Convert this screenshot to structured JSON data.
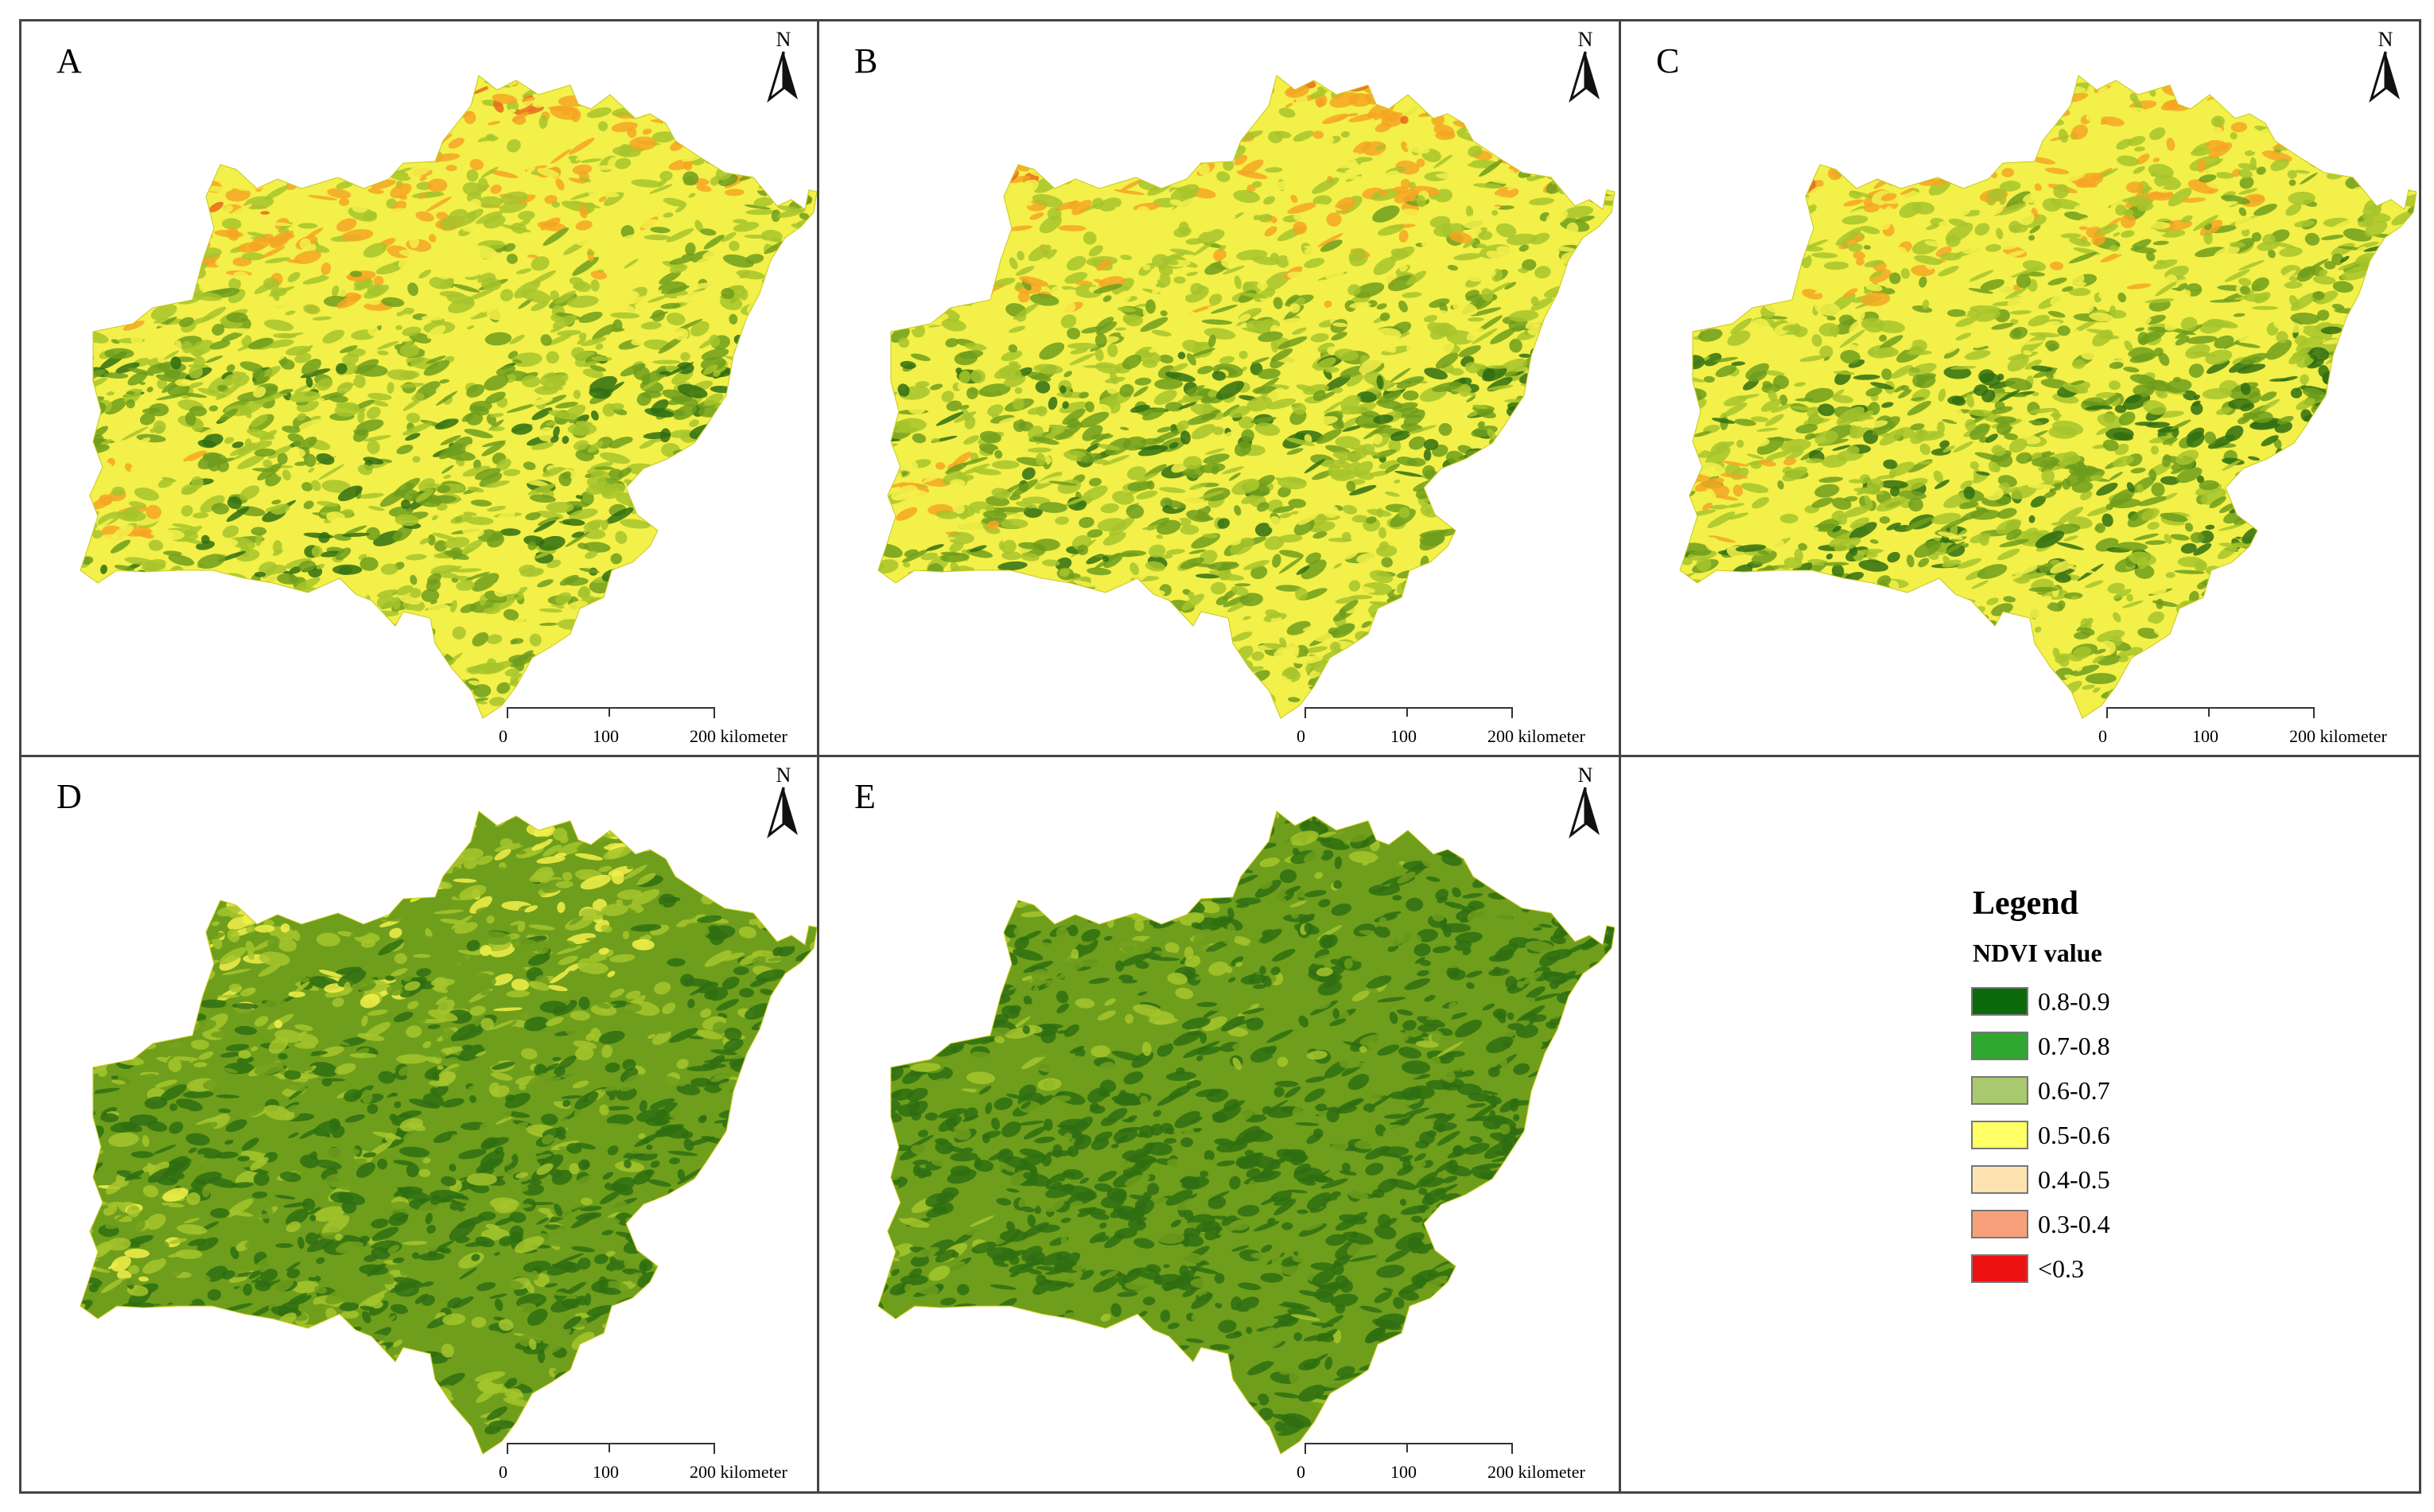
{
  "panels": [
    {
      "id": "A",
      "label": "A",
      "north": "N",
      "scale": {
        "ticks": [
          "0",
          "100",
          "200 kilometer"
        ]
      },
      "green_weight": 0.3
    },
    {
      "id": "B",
      "label": "B",
      "north": "N",
      "scale": {
        "ticks": [
          "0",
          "100",
          "200 kilometer"
        ]
      },
      "green_weight": 0.32
    },
    {
      "id": "C",
      "label": "C",
      "north": "N",
      "scale": {
        "ticks": [
          "0",
          "100",
          "200 kilometer"
        ]
      },
      "green_weight": 0.35
    },
    {
      "id": "D",
      "label": "D",
      "north": "N",
      "scale": {
        "ticks": [
          "0",
          "100",
          "200 kilometer"
        ]
      },
      "green_weight": 0.58
    },
    {
      "id": "E",
      "label": "E",
      "north": "N",
      "scale": {
        "ticks": [
          "0",
          "100",
          "200 kilometer"
        ]
      },
      "green_weight": 0.78
    }
  ],
  "legend": {
    "title": "Legend",
    "subtitle": "NDVI value",
    "items": [
      {
        "label": "0.8-0.9",
        "color": "#0b6a0b"
      },
      {
        "label": "0.7-0.8",
        "color": "#2fa82f"
      },
      {
        "label": "0.6-0.7",
        "color": "#a9c96e"
      },
      {
        "label": "0.5-0.6",
        "color": "#ffff66"
      },
      {
        "label": "0.4-0.5",
        "color": "#fde3b0"
      },
      {
        "label": "0.3-0.4",
        "color": "#f8a07a"
      },
      {
        "label": "<0.3",
        "color": "#ee1111"
      }
    ]
  },
  "colors": {
    "dark_green": "#2f6f12",
    "green": "#6e9e1c",
    "light_green": "#a6c42c",
    "yellow": "#f3f04a",
    "orange": "#f5a623",
    "red_orange": "#e86a1c"
  }
}
